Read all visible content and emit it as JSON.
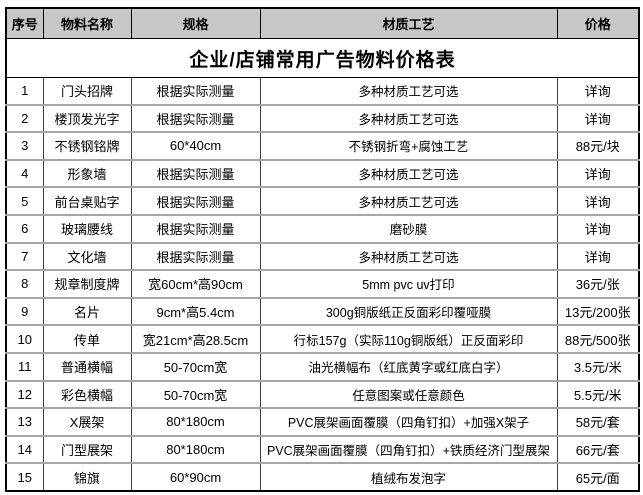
{
  "title": "企业/店铺常用广告物料价格表",
  "colors": {
    "header_background": "#c7c7c7",
    "outer_border": "#000000",
    "row_divider": "#a6a6a6",
    "text": "#000000"
  },
  "table": {
    "headers": [
      "序号",
      "物料名称",
      "规格",
      "材质工艺",
      "价格"
    ],
    "rows": [
      [
        "1",
        "门头招牌",
        "根据实际测量",
        "多种材质工艺可选",
        "详询"
      ],
      [
        "2",
        "楼顶发光字",
        "根据实际测量",
        "多种材质工艺可选",
        "详询"
      ],
      [
        "3",
        "不锈钢铭牌",
        "60*40cm",
        "不锈钢折弯+腐蚀工艺",
        "88元/块"
      ],
      [
        "4",
        "形象墙",
        "根据实际测量",
        "多种材质工艺可选",
        "详询"
      ],
      [
        "5",
        "前台桌贴字",
        "根据实际测量",
        "多种材质工艺可选",
        "详询"
      ],
      [
        "6",
        "玻璃腰线",
        "根据实际测量",
        "磨砂膜",
        "详询"
      ],
      [
        "7",
        "文化墙",
        "根据实际测量",
        "多种材质工艺可选",
        "详询"
      ],
      [
        "8",
        "规章制度牌",
        "宽60cm*高90cm",
        "5mm pvc uv打印",
        "36元/张"
      ],
      [
        "9",
        "名片",
        "9cm*高5.4cm",
        "300g铜版纸正反面彩印覆哑膜",
        "13元/200张"
      ],
      [
        "10",
        "传单",
        "宽21cm*高28.5cm",
        "行标157g（实际110g铜版纸）正反面彩印",
        "88元/500张"
      ],
      [
        "11",
        "普通横幅",
        "50-70cm宽",
        "油光横幅布（红底黄字或红底白字）",
        "3.5元/米"
      ],
      [
        "12",
        "彩色横幅",
        "50-70cm宽",
        "任意图案或任意颜色",
        "5.5元/米"
      ],
      [
        "13",
        "X展架",
        "80*180cm",
        "PVC展架画面覆膜（四角钉扣）+加强X架子",
        "58元/套"
      ],
      [
        "14",
        "门型展架",
        "80*180cm",
        "PVC展架画面覆膜（四角钉扣）+铁质经济门型展架",
        "66元/套"
      ],
      [
        "15",
        "锦旗",
        "60*90cm",
        "植绒布发泡字",
        "65元/面"
      ]
    ]
  }
}
